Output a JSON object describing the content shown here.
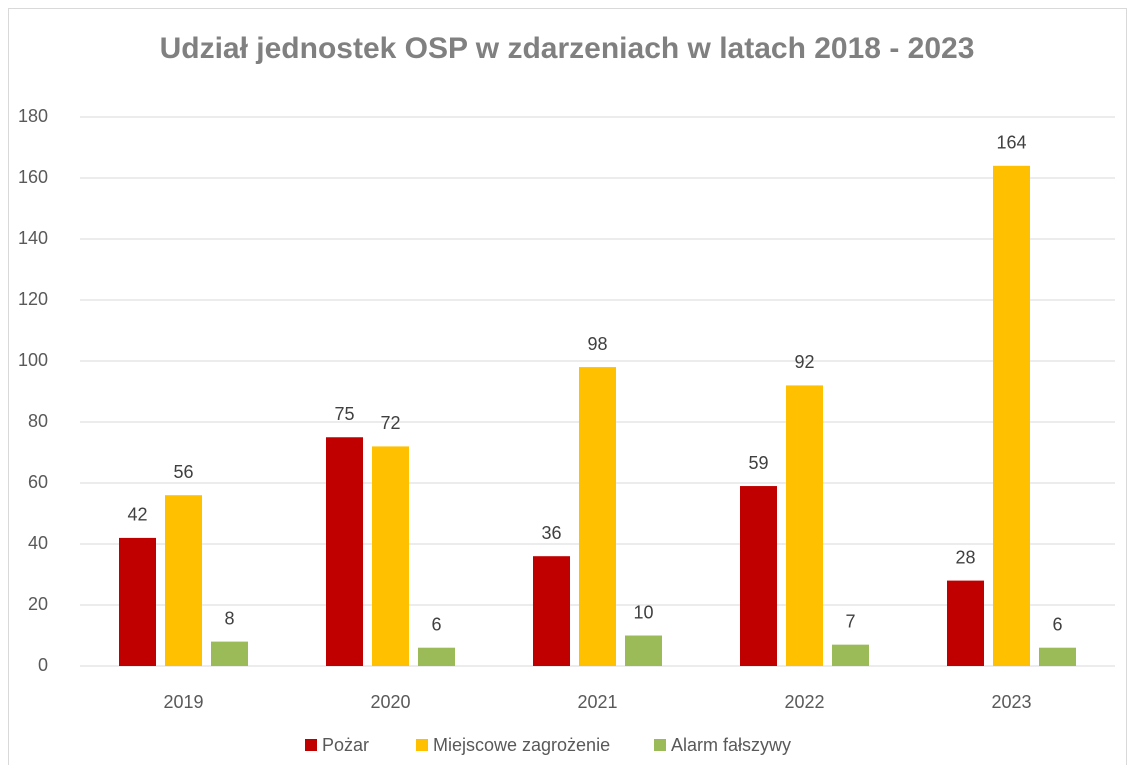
{
  "chart_data": {
    "type": "bar",
    "title": "Udział jednostek OSP w zdarzeniach w latach 2018 - 2023",
    "categories": [
      "2019",
      "2020",
      "2021",
      "2022",
      "2023"
    ],
    "series": [
      {
        "name": "Pożar",
        "color": "#c00000",
        "values": [
          42,
          75,
          36,
          59,
          28
        ]
      },
      {
        "name": "Miejscowe zagrożenie",
        "color": "#ffc000",
        "values": [
          56,
          72,
          98,
          92,
          164
        ]
      },
      {
        "name": "Alarm fałszywy",
        "color": "#9bbb59",
        "values": [
          8,
          6,
          10,
          7,
          6
        ]
      }
    ],
    "ylim": [
      0,
      180
    ],
    "yticks": [
      0,
      20,
      40,
      60,
      80,
      100,
      120,
      140,
      160,
      180
    ],
    "grid": true,
    "legend": "bottom"
  }
}
